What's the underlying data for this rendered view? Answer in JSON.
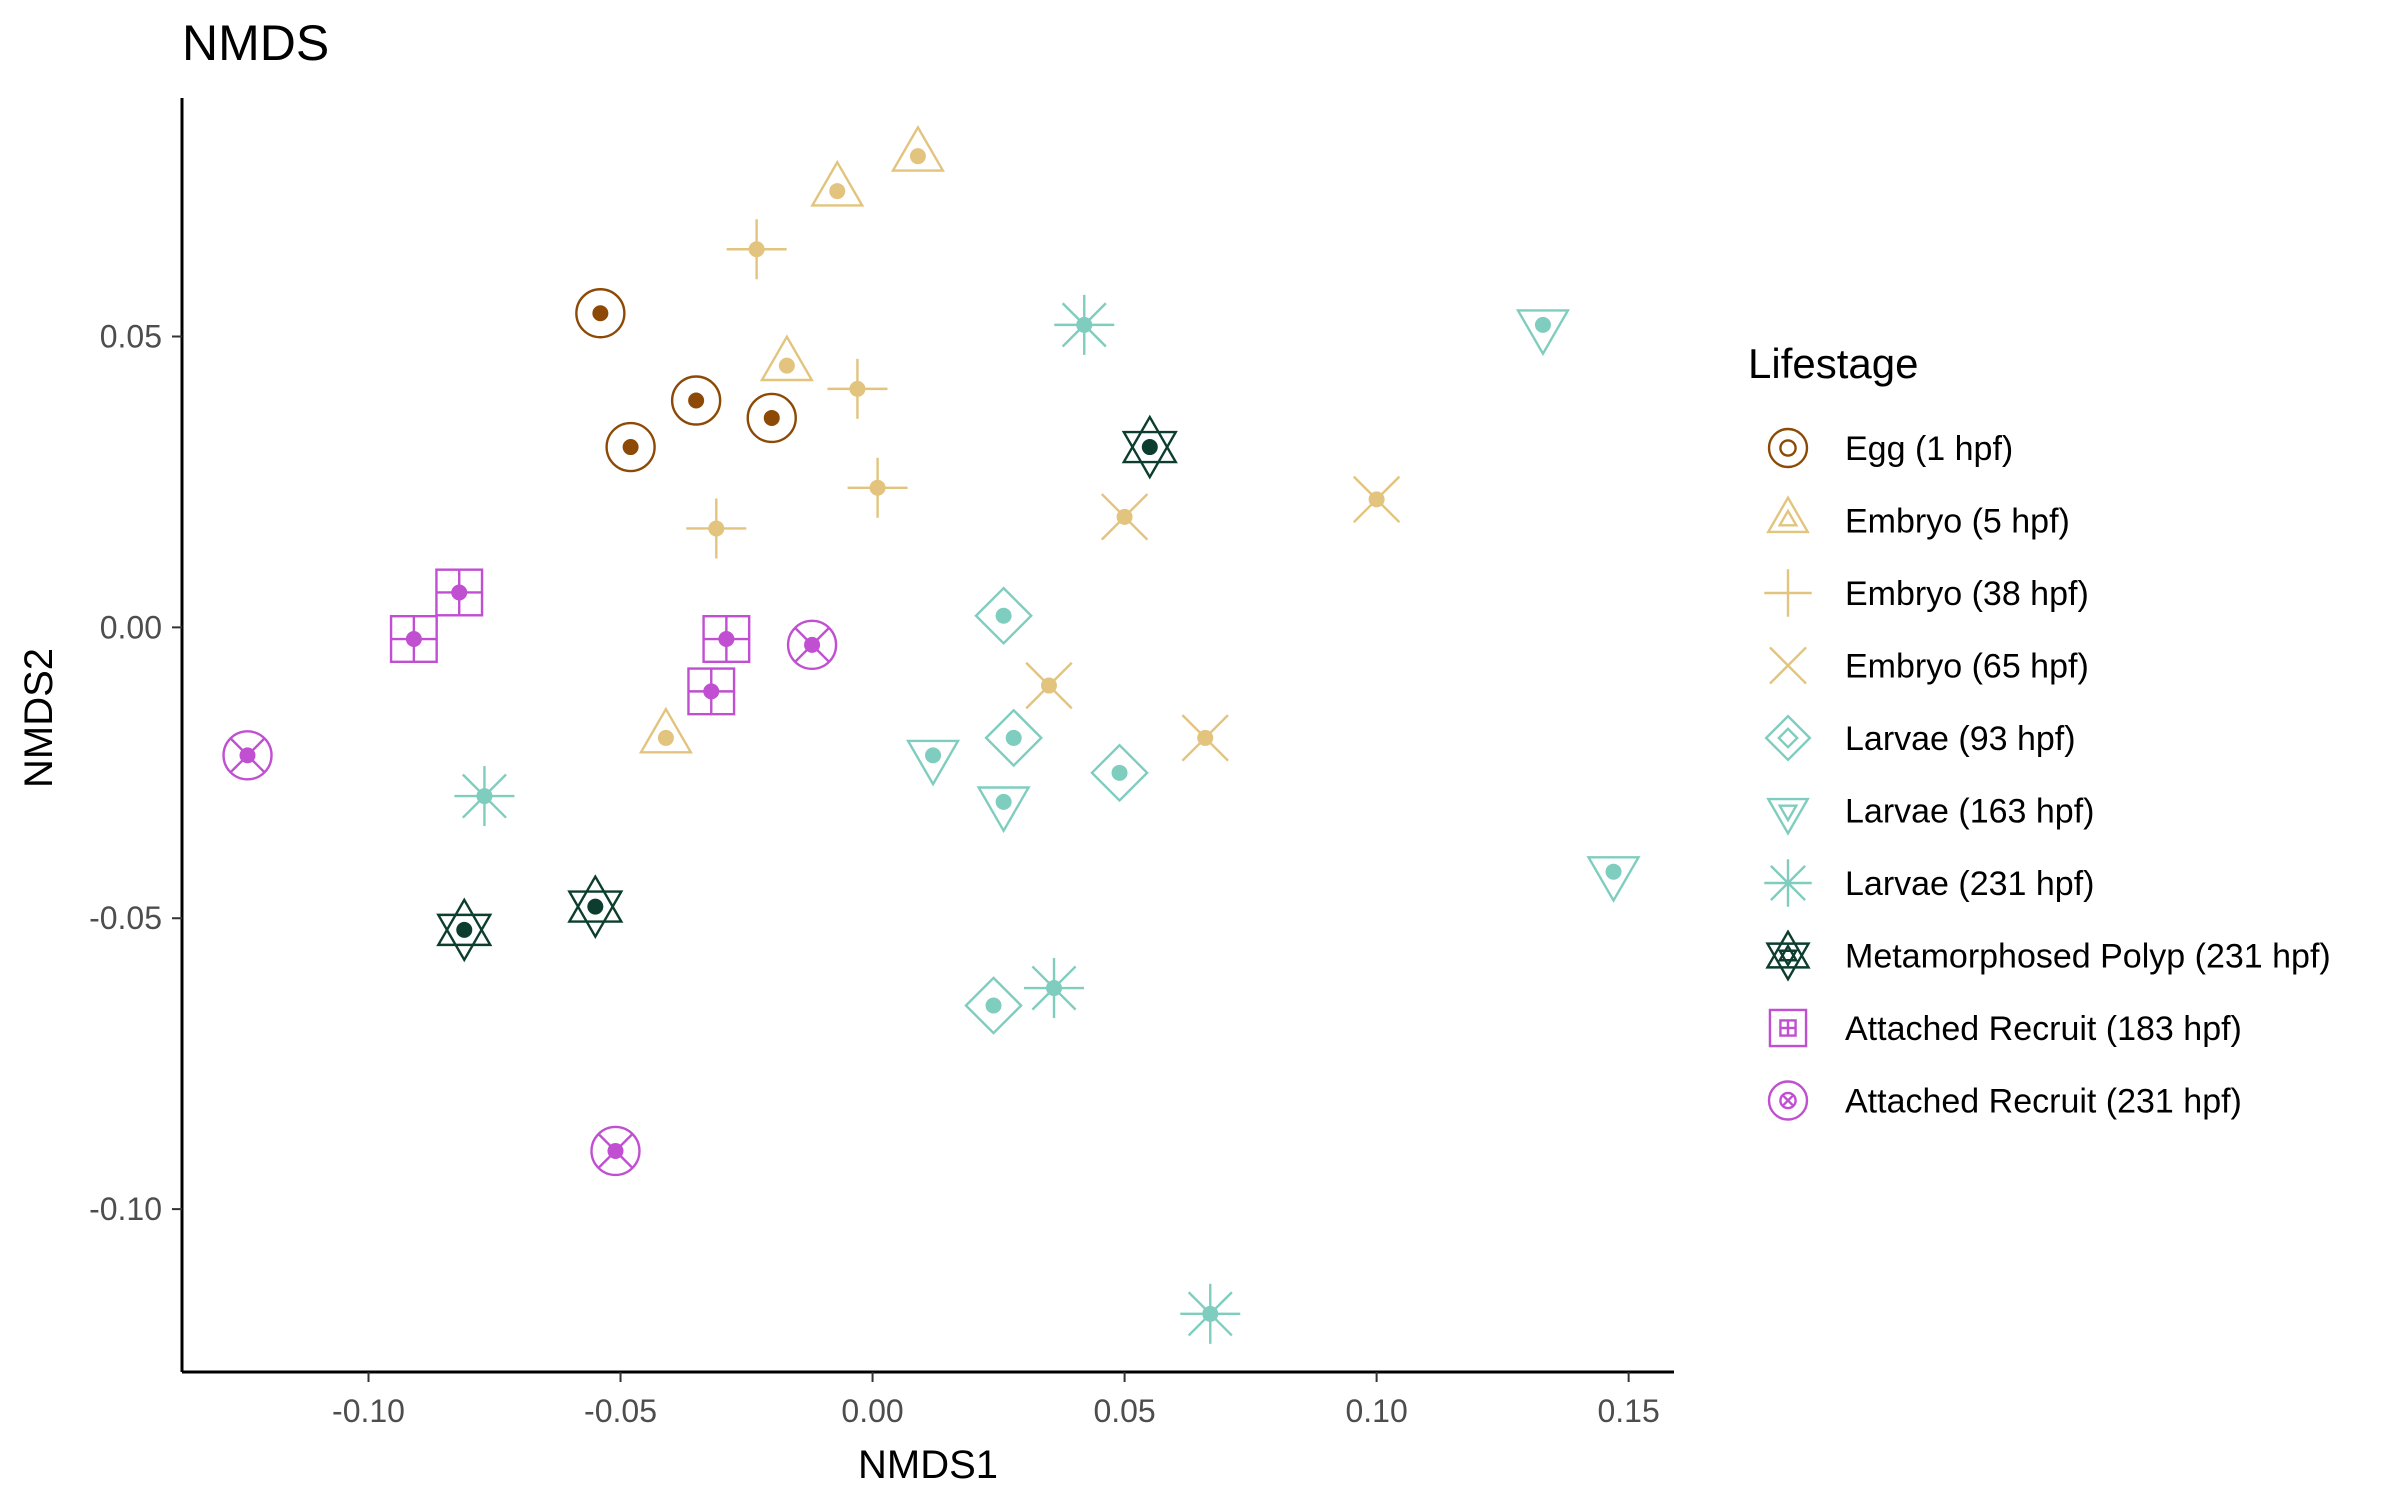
{
  "chart_data": {
    "type": "scatter",
    "title": "NMDS",
    "xlabel": "NMDS1",
    "ylabel": "NMDS2",
    "xlim": [
      -0.137,
      0.159
    ],
    "ylim": [
      -0.128,
      0.091
    ],
    "xticks": [
      -0.1,
      -0.05,
      0.0,
      0.05,
      0.1,
      0.15
    ],
    "xtick_labels": [
      "-0.10",
      "-0.05",
      "0.00",
      "0.05",
      "0.10",
      "0.15"
    ],
    "yticks": [
      -0.1,
      -0.05,
      0.0,
      0.05
    ],
    "ytick_labels": [
      "-0.10",
      "-0.05",
      "0.00",
      "0.05"
    ],
    "grid": false,
    "legend": {
      "title": "Lifestage",
      "position": "right"
    },
    "series": [
      {
        "name": "Egg (1 hpf)",
        "color": "#8c4a06",
        "shape": "circle-ring",
        "points": [
          [
            -0.054,
            0.054
          ],
          [
            -0.035,
            0.039
          ],
          [
            -0.048,
            0.031
          ],
          [
            -0.02,
            0.036
          ]
        ]
      },
      {
        "name": "Embryo (5 hpf)",
        "color": "#e2c47f",
        "shape": "triangle-up",
        "points": [
          [
            -0.007,
            0.075
          ],
          [
            0.009,
            0.081
          ],
          [
            -0.017,
            0.045
          ],
          [
            -0.041,
            -0.019
          ]
        ]
      },
      {
        "name": "Embryo (38 hpf)",
        "color": "#e2c47f",
        "shape": "plus",
        "points": [
          [
            -0.023,
            0.065
          ],
          [
            -0.003,
            0.041
          ],
          [
            0.001,
            0.024
          ],
          [
            -0.031,
            0.017
          ]
        ]
      },
      {
        "name": "Embryo (65 hpf)",
        "color": "#e2c47f",
        "shape": "cross",
        "points": [
          [
            0.1,
            0.022
          ],
          [
            0.05,
            0.019
          ],
          [
            0.035,
            -0.01
          ],
          [
            0.066,
            -0.019
          ]
        ]
      },
      {
        "name": "Larvae (93 hpf)",
        "color": "#7fcdbf",
        "shape": "diamond",
        "points": [
          [
            0.026,
            0.002
          ],
          [
            0.028,
            -0.019
          ],
          [
            0.049,
            -0.025
          ],
          [
            0.024,
            -0.065
          ]
        ]
      },
      {
        "name": "Larvae (163 hpf)",
        "color": "#7fcdbf",
        "shape": "triangle-down",
        "points": [
          [
            0.133,
            0.052
          ],
          [
            0.012,
            -0.022
          ],
          [
            0.026,
            -0.03
          ],
          [
            0.147,
            -0.042
          ]
        ]
      },
      {
        "name": "Larvae (231 hpf)",
        "color": "#7fcdbf",
        "shape": "asterisk",
        "points": [
          [
            0.042,
            0.052
          ],
          [
            -0.077,
            -0.029
          ],
          [
            0.036,
            -0.062
          ],
          [
            0.067,
            -0.118
          ]
        ]
      },
      {
        "name": "Metamorphosed Polyp (231 hpf)",
        "color": "#0c3d2e",
        "shape": "star-david",
        "points": [
          [
            0.055,
            0.031
          ],
          [
            -0.081,
            -0.052
          ],
          [
            -0.055,
            -0.048
          ]
        ]
      },
      {
        "name": "Attached Recruit (183 hpf)",
        "color": "#c04fd1",
        "shape": "square-plus",
        "points": [
          [
            -0.082,
            0.006
          ],
          [
            -0.091,
            -0.002
          ],
          [
            -0.029,
            -0.002
          ],
          [
            -0.032,
            -0.011
          ]
        ]
      },
      {
        "name": "Attached Recruit (231 hpf)",
        "color": "#c04fd1",
        "shape": "circle-x",
        "points": [
          [
            -0.012,
            -0.003
          ],
          [
            -0.124,
            -0.022
          ],
          [
            -0.051,
            -0.09
          ]
        ]
      }
    ]
  }
}
